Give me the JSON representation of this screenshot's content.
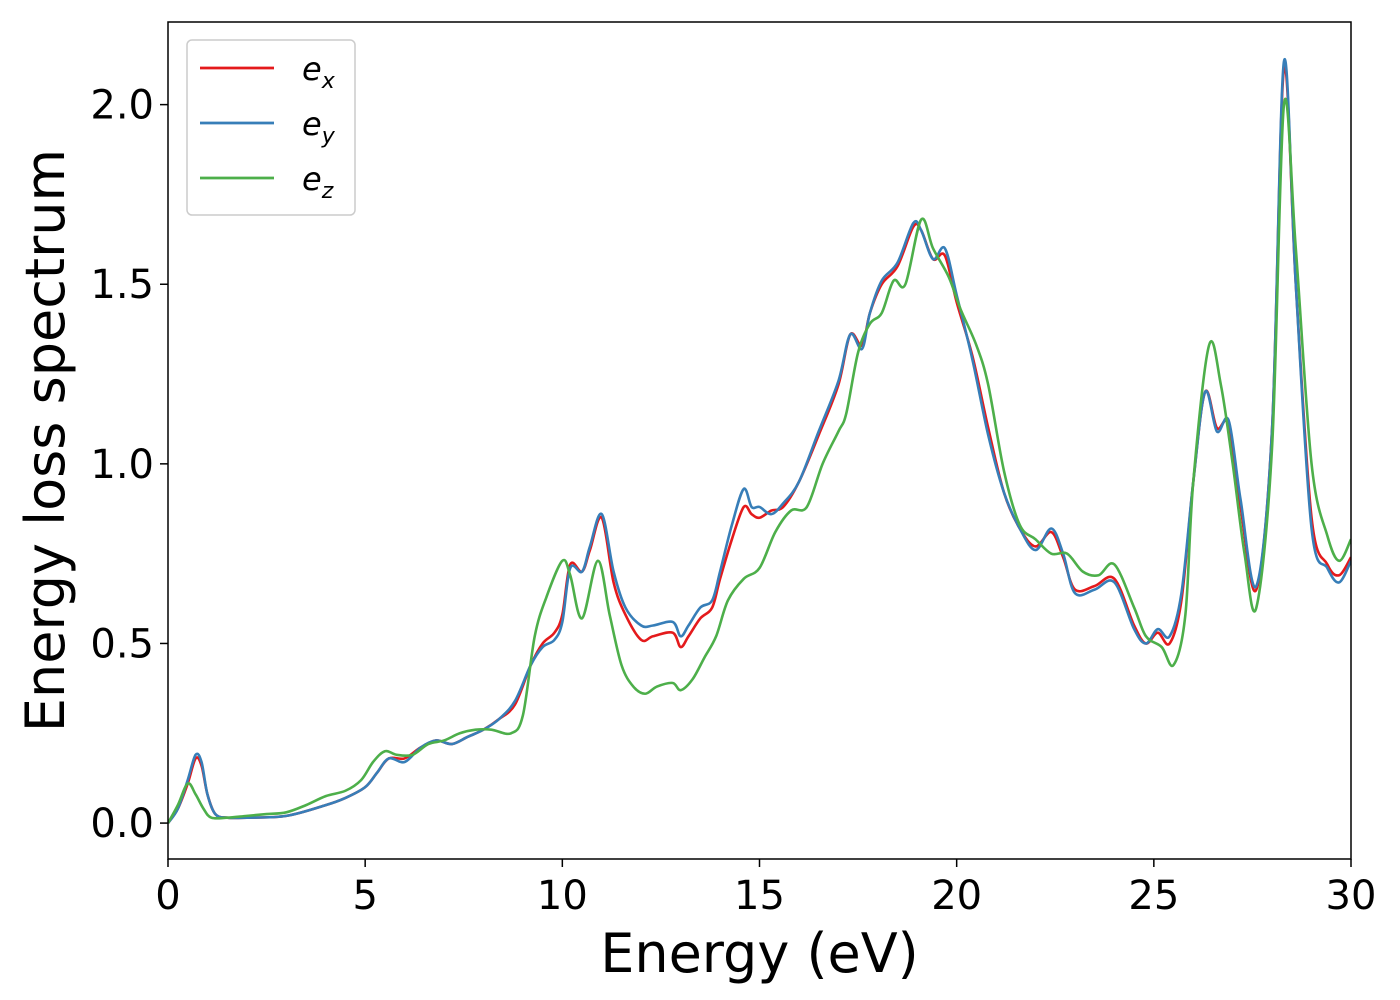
{
  "chart_data": {
    "type": "line",
    "title": "",
    "xlabel": "Energy (eV)",
    "ylabel": "Energy loss spectrum",
    "xlim": [
      0,
      30
    ],
    "ylim": [
      -0.1,
      2.23
    ],
    "xticks": [
      0,
      5,
      10,
      15,
      20,
      25,
      30
    ],
    "xtick_labels": [
      "0",
      "5",
      "10",
      "15",
      "20",
      "25",
      "30"
    ],
    "yticks": [
      0.0,
      0.5,
      1.0,
      1.5,
      2.0
    ],
    "ytick_labels": [
      "0.0",
      "0.5",
      "1.0",
      "1.5",
      "2.0"
    ],
    "grid": false,
    "legend_position": "top-left",
    "series": [
      {
        "name": "e",
        "subscript": "x",
        "color": "#e41a1c",
        "points": [
          [
            0,
            0
          ],
          [
            0.25,
            0.04
          ],
          [
            0.5,
            0.11
          ],
          [
            0.7,
            0.18
          ],
          [
            0.85,
            0.16
          ],
          [
            1.0,
            0.08
          ],
          [
            1.2,
            0.025
          ],
          [
            1.5,
            0.015
          ],
          [
            2,
            0.015
          ],
          [
            3,
            0.02
          ],
          [
            4,
            0.05
          ],
          [
            4.5,
            0.07
          ],
          [
            5,
            0.1
          ],
          [
            5.3,
            0.14
          ],
          [
            5.6,
            0.18
          ],
          [
            6,
            0.18
          ],
          [
            6.4,
            0.21
          ],
          [
            6.8,
            0.23
          ],
          [
            7.2,
            0.22
          ],
          [
            7.6,
            0.24
          ],
          [
            8,
            0.26
          ],
          [
            8.4,
            0.29
          ],
          [
            8.8,
            0.33
          ],
          [
            9.2,
            0.44
          ],
          [
            9.5,
            0.5
          ],
          [
            9.8,
            0.53
          ],
          [
            10,
            0.58
          ],
          [
            10.2,
            0.72
          ],
          [
            10.5,
            0.7
          ],
          [
            10.7,
            0.76
          ],
          [
            11,
            0.85
          ],
          [
            11.3,
            0.67
          ],
          [
            11.6,
            0.58
          ],
          [
            12,
            0.51
          ],
          [
            12.3,
            0.52
          ],
          [
            12.8,
            0.53
          ],
          [
            13,
            0.49
          ],
          [
            13.2,
            0.52
          ],
          [
            13.5,
            0.57
          ],
          [
            13.8,
            0.6
          ],
          [
            14,
            0.68
          ],
          [
            14.3,
            0.79
          ],
          [
            14.6,
            0.88
          ],
          [
            14.8,
            0.86
          ],
          [
            15,
            0.85
          ],
          [
            15.3,
            0.87
          ],
          [
            15.6,
            0.88
          ],
          [
            16,
            0.95
          ],
          [
            16.5,
            1.08
          ],
          [
            17,
            1.22
          ],
          [
            17.3,
            1.36
          ],
          [
            17.6,
            1.33
          ],
          [
            17.8,
            1.42
          ],
          [
            18.1,
            1.5
          ],
          [
            18.5,
            1.55
          ],
          [
            18.9,
            1.66
          ],
          [
            19.1,
            1.65
          ],
          [
            19.4,
            1.57
          ],
          [
            19.7,
            1.58
          ],
          [
            20,
            1.45
          ],
          [
            20.4,
            1.3
          ],
          [
            20.8,
            1.1
          ],
          [
            21.2,
            0.92
          ],
          [
            21.6,
            0.82
          ],
          [
            22,
            0.77
          ],
          [
            22.4,
            0.81
          ],
          [
            22.7,
            0.74
          ],
          [
            23,
            0.65
          ],
          [
            23.5,
            0.66
          ],
          [
            24,
            0.68
          ],
          [
            24.5,
            0.55
          ],
          [
            24.8,
            0.5
          ],
          [
            25.1,
            0.53
          ],
          [
            25.4,
            0.5
          ],
          [
            25.7,
            0.62
          ],
          [
            26,
            0.95
          ],
          [
            26.3,
            1.2
          ],
          [
            26.6,
            1.1
          ],
          [
            26.9,
            1.11
          ],
          [
            27.2,
            0.88
          ],
          [
            27.6,
            0.65
          ],
          [
            28,
            1.1
          ],
          [
            28.3,
            2.1
          ],
          [
            28.6,
            1.5
          ],
          [
            29,
            0.85
          ],
          [
            29.4,
            0.72
          ],
          [
            29.7,
            0.69
          ],
          [
            30,
            0.74
          ]
        ]
      },
      {
        "name": "e",
        "subscript": "y",
        "color": "#377eb8",
        "points": [
          [
            0,
            0
          ],
          [
            0.25,
            0.04
          ],
          [
            0.5,
            0.12
          ],
          [
            0.7,
            0.19
          ],
          [
            0.85,
            0.17
          ],
          [
            1.0,
            0.08
          ],
          [
            1.2,
            0.025
          ],
          [
            1.5,
            0.015
          ],
          [
            2,
            0.015
          ],
          [
            3,
            0.02
          ],
          [
            4,
            0.05
          ],
          [
            4.5,
            0.07
          ],
          [
            5,
            0.1
          ],
          [
            5.3,
            0.14
          ],
          [
            5.6,
            0.18
          ],
          [
            6,
            0.17
          ],
          [
            6.4,
            0.21
          ],
          [
            6.8,
            0.23
          ],
          [
            7.2,
            0.22
          ],
          [
            7.6,
            0.24
          ],
          [
            8,
            0.26
          ],
          [
            8.4,
            0.29
          ],
          [
            8.8,
            0.34
          ],
          [
            9.2,
            0.44
          ],
          [
            9.5,
            0.49
          ],
          [
            9.8,
            0.51
          ],
          [
            10,
            0.56
          ],
          [
            10.2,
            0.71
          ],
          [
            10.5,
            0.7
          ],
          [
            10.7,
            0.77
          ],
          [
            11,
            0.86
          ],
          [
            11.3,
            0.7
          ],
          [
            11.6,
            0.6
          ],
          [
            12,
            0.55
          ],
          [
            12.3,
            0.55
          ],
          [
            12.8,
            0.56
          ],
          [
            13,
            0.52
          ],
          [
            13.2,
            0.55
          ],
          [
            13.5,
            0.6
          ],
          [
            13.8,
            0.62
          ],
          [
            14,
            0.7
          ],
          [
            14.3,
            0.83
          ],
          [
            14.6,
            0.93
          ],
          [
            14.8,
            0.88
          ],
          [
            15,
            0.88
          ],
          [
            15.3,
            0.86
          ],
          [
            15.6,
            0.89
          ],
          [
            16,
            0.95
          ],
          [
            16.5,
            1.09
          ],
          [
            17,
            1.23
          ],
          [
            17.3,
            1.36
          ],
          [
            17.6,
            1.32
          ],
          [
            17.8,
            1.42
          ],
          [
            18.1,
            1.51
          ],
          [
            18.5,
            1.56
          ],
          [
            18.9,
            1.67
          ],
          [
            19.1,
            1.65
          ],
          [
            19.4,
            1.57
          ],
          [
            19.7,
            1.6
          ],
          [
            20,
            1.47
          ],
          [
            20.4,
            1.29
          ],
          [
            20.8,
            1.08
          ],
          [
            21.2,
            0.92
          ],
          [
            21.6,
            0.82
          ],
          [
            22,
            0.76
          ],
          [
            22.4,
            0.82
          ],
          [
            22.7,
            0.75
          ],
          [
            23,
            0.64
          ],
          [
            23.5,
            0.65
          ],
          [
            24,
            0.67
          ],
          [
            24.5,
            0.54
          ],
          [
            24.8,
            0.5
          ],
          [
            25.1,
            0.54
          ],
          [
            25.4,
            0.52
          ],
          [
            25.7,
            0.64
          ],
          [
            26,
            0.95
          ],
          [
            26.3,
            1.2
          ],
          [
            26.6,
            1.09
          ],
          [
            26.9,
            1.12
          ],
          [
            27.2,
            0.9
          ],
          [
            27.6,
            0.66
          ],
          [
            28,
            1.1
          ],
          [
            28.3,
            2.12
          ],
          [
            28.6,
            1.5
          ],
          [
            29,
            0.82
          ],
          [
            29.4,
            0.71
          ],
          [
            29.7,
            0.67
          ],
          [
            30,
            0.73
          ]
        ]
      },
      {
        "name": "e",
        "subscript": "z",
        "color": "#4daf4a",
        "points": [
          [
            0,
            0
          ],
          [
            0.25,
            0.05
          ],
          [
            0.5,
            0.11
          ],
          [
            0.7,
            0.08
          ],
          [
            0.9,
            0.04
          ],
          [
            1.1,
            0.015
          ],
          [
            1.5,
            0.015
          ],
          [
            2,
            0.02
          ],
          [
            2.5,
            0.025
          ],
          [
            3,
            0.03
          ],
          [
            3.5,
            0.05
          ],
          [
            4,
            0.075
          ],
          [
            4.5,
            0.09
          ],
          [
            4.9,
            0.12
          ],
          [
            5.2,
            0.17
          ],
          [
            5.5,
            0.2
          ],
          [
            5.8,
            0.19
          ],
          [
            6.2,
            0.19
          ],
          [
            6.6,
            0.22
          ],
          [
            7,
            0.23
          ],
          [
            7.4,
            0.25
          ],
          [
            7.8,
            0.26
          ],
          [
            8.2,
            0.26
          ],
          [
            8.7,
            0.25
          ],
          [
            9,
            0.3
          ],
          [
            9.3,
            0.52
          ],
          [
            9.6,
            0.63
          ],
          [
            10,
            0.73
          ],
          [
            10.2,
            0.69
          ],
          [
            10.5,
            0.57
          ],
          [
            10.9,
            0.73
          ],
          [
            11.2,
            0.58
          ],
          [
            11.5,
            0.44
          ],
          [
            11.8,
            0.38
          ],
          [
            12.1,
            0.36
          ],
          [
            12.4,
            0.38
          ],
          [
            12.8,
            0.39
          ],
          [
            13,
            0.37
          ],
          [
            13.3,
            0.4
          ],
          [
            13.6,
            0.46
          ],
          [
            13.9,
            0.52
          ],
          [
            14.2,
            0.62
          ],
          [
            14.6,
            0.68
          ],
          [
            15,
            0.71
          ],
          [
            15.4,
            0.81
          ],
          [
            15.8,
            0.87
          ],
          [
            16.2,
            0.88
          ],
          [
            16.6,
            1.0
          ],
          [
            17,
            1.09
          ],
          [
            17.2,
            1.14
          ],
          [
            17.5,
            1.31
          ],
          [
            17.8,
            1.39
          ],
          [
            18.1,
            1.42
          ],
          [
            18.4,
            1.51
          ],
          [
            18.7,
            1.5
          ],
          [
            19.1,
            1.68
          ],
          [
            19.4,
            1.6
          ],
          [
            19.8,
            1.52
          ],
          [
            20.1,
            1.43
          ],
          [
            20.5,
            1.33
          ],
          [
            20.8,
            1.22
          ],
          [
            21.2,
            0.98
          ],
          [
            21.6,
            0.83
          ],
          [
            22,
            0.79
          ],
          [
            22.4,
            0.75
          ],
          [
            22.8,
            0.75
          ],
          [
            23.2,
            0.7
          ],
          [
            23.6,
            0.69
          ],
          [
            24,
            0.72
          ],
          [
            24.5,
            0.6
          ],
          [
            24.8,
            0.52
          ],
          [
            25.2,
            0.49
          ],
          [
            25.5,
            0.44
          ],
          [
            25.8,
            0.58
          ],
          [
            26,
            0.95
          ],
          [
            26.4,
            1.33
          ],
          [
            26.7,
            1.22
          ],
          [
            27,
            1.0
          ],
          [
            27.3,
            0.75
          ],
          [
            27.6,
            0.6
          ],
          [
            28,
            1.05
          ],
          [
            28.3,
            2.0
          ],
          [
            28.6,
            1.6
          ],
          [
            29,
            1.0
          ],
          [
            29.4,
            0.8
          ],
          [
            29.7,
            0.73
          ],
          [
            30,
            0.79
          ]
        ]
      }
    ]
  }
}
